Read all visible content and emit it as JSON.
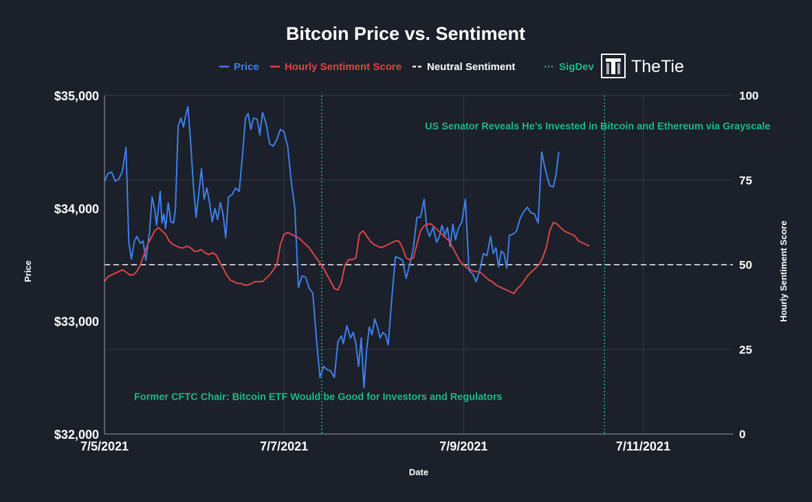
{
  "chart_data": {
    "type": "line",
    "title": "Bitcoin Price vs. Sentiment",
    "xlabel": "Date",
    "ylabel": "Price",
    "y2label": "Hourly Sentiment Score",
    "x_range": [
      0,
      7
    ],
    "x_ticks": [
      {
        "x": 0,
        "label": "7/5/2021"
      },
      {
        "x": 2,
        "label": "7/7/2021"
      },
      {
        "x": 4,
        "label": "7/9/2021"
      },
      {
        "x": 6,
        "label": "7/11/2021"
      }
    ],
    "ylim": [
      32000,
      35000
    ],
    "y_ticks": [
      {
        "v": 32000,
        "label": "$32,000"
      },
      {
        "v": 33000,
        "label": "$33,000"
      },
      {
        "v": 34000,
        "label": "$34,000"
      },
      {
        "v": 35000,
        "label": "$35,000"
      }
    ],
    "y2lim": [
      0,
      100
    ],
    "y2_ticks": [
      {
        "v": 0,
        "label": "0"
      },
      {
        "v": 25,
        "label": "25"
      },
      {
        "v": 50,
        "label": "50"
      },
      {
        "v": 75,
        "label": "75"
      },
      {
        "v": 100,
        "label": "100"
      }
    ],
    "legend": [
      {
        "name": "Price",
        "color": "#3f80ea",
        "style": "solid"
      },
      {
        "name": "Hourly Sentiment Score",
        "color": "#e04545",
        "style": "solid"
      },
      {
        "name": "Neutral Sentiment",
        "color": "#ffffff",
        "style": "dashed"
      },
      {
        "name": "SigDev",
        "color": "#1fb886",
        "style": "dotted"
      }
    ],
    "neutral_value": 50,
    "sigdevs": [
      {
        "x": 2.42,
        "text": "Former CFTC Chair: Bitcoin ETF Would be Good for Investors and Regulators",
        "label_x": 0.33,
        "label_y2": 10
      },
      {
        "x": 5.57,
        "text": "US Senator Reveals He’s Invested in Bitcoin and Ethereum via Grayscale",
        "label_x": 3.57,
        "label_y2": 90
      }
    ],
    "series": [
      {
        "name": "Price",
        "color": "#3f80ea",
        "axis": "left",
        "points": [
          [
            0.0,
            34240
          ],
          [
            0.04,
            34310
          ],
          [
            0.08,
            34320
          ],
          [
            0.12,
            34240
          ],
          [
            0.16,
            34260
          ],
          [
            0.2,
            34330
          ],
          [
            0.24,
            34540
          ],
          [
            0.27,
            33700
          ],
          [
            0.3,
            33550
          ],
          [
            0.33,
            33700
          ],
          [
            0.36,
            33750
          ],
          [
            0.4,
            33690
          ],
          [
            0.43,
            33710
          ],
          [
            0.46,
            33540
          ],
          [
            0.5,
            33780
          ],
          [
            0.53,
            34100
          ],
          [
            0.56,
            33990
          ],
          [
            0.58,
            33850
          ],
          [
            0.62,
            34150
          ],
          [
            0.64,
            33870
          ],
          [
            0.66,
            33950
          ],
          [
            0.68,
            33820
          ],
          [
            0.71,
            34050
          ],
          [
            0.74,
            33880
          ],
          [
            0.77,
            33870
          ],
          [
            0.79,
            34000
          ],
          [
            0.82,
            34730
          ],
          [
            0.85,
            34800
          ],
          [
            0.88,
            34720
          ],
          [
            0.9,
            34810
          ],
          [
            0.93,
            34900
          ],
          [
            0.96,
            34580
          ],
          [
            0.99,
            34200
          ],
          [
            1.02,
            33920
          ],
          [
            1.05,
            34130
          ],
          [
            1.08,
            34350
          ],
          [
            1.11,
            34080
          ],
          [
            1.14,
            34180
          ],
          [
            1.17,
            34050
          ],
          [
            1.2,
            33880
          ],
          [
            1.23,
            34000
          ],
          [
            1.26,
            33900
          ],
          [
            1.29,
            34050
          ],
          [
            1.32,
            33950
          ],
          [
            1.35,
            33740
          ],
          [
            1.38,
            34100
          ],
          [
            1.42,
            34120
          ],
          [
            1.46,
            34180
          ],
          [
            1.5,
            34150
          ],
          [
            1.54,
            34500
          ],
          [
            1.57,
            34800
          ],
          [
            1.6,
            34840
          ],
          [
            1.63,
            34700
          ],
          [
            1.66,
            34800
          ],
          [
            1.7,
            34790
          ],
          [
            1.73,
            34650
          ],
          [
            1.76,
            34850
          ],
          [
            1.8,
            34750
          ],
          [
            1.84,
            34570
          ],
          [
            1.88,
            34550
          ],
          [
            1.92,
            34610
          ],
          [
            1.96,
            34700
          ],
          [
            2.0,
            34680
          ],
          [
            2.04,
            34550
          ],
          [
            2.08,
            34240
          ],
          [
            2.12,
            34000
          ],
          [
            2.16,
            33300
          ],
          [
            2.2,
            33400
          ],
          [
            2.24,
            33390
          ],
          [
            2.28,
            33290
          ],
          [
            2.32,
            33250
          ],
          [
            2.36,
            32850
          ],
          [
            2.4,
            32500
          ],
          [
            2.44,
            32600
          ],
          [
            2.48,
            32570
          ],
          [
            2.52,
            32560
          ],
          [
            2.56,
            32500
          ],
          [
            2.6,
            32820
          ],
          [
            2.64,
            32870
          ],
          [
            2.66,
            32800
          ],
          [
            2.7,
            32960
          ],
          [
            2.74,
            32850
          ],
          [
            2.77,
            32900
          ],
          [
            2.8,
            32800
          ],
          [
            2.83,
            32600
          ],
          [
            2.86,
            32850
          ],
          [
            2.89,
            32410
          ],
          [
            2.92,
            32750
          ],
          [
            2.95,
            32950
          ],
          [
            2.98,
            32880
          ],
          [
            3.01,
            33020
          ],
          [
            3.04,
            32950
          ],
          [
            3.07,
            32850
          ],
          [
            3.1,
            32900
          ],
          [
            3.13,
            32880
          ],
          [
            3.16,
            32790
          ],
          [
            3.2,
            33200
          ],
          [
            3.24,
            33570
          ],
          [
            3.28,
            33560
          ],
          [
            3.32,
            33540
          ],
          [
            3.36,
            33380
          ],
          [
            3.4,
            33500
          ],
          [
            3.44,
            33650
          ],
          [
            3.48,
            33920
          ],
          [
            3.52,
            33920
          ],
          [
            3.56,
            34080
          ],
          [
            3.59,
            33820
          ],
          [
            3.62,
            33750
          ],
          [
            3.66,
            33830
          ],
          [
            3.7,
            33700
          ],
          [
            3.73,
            33750
          ],
          [
            3.76,
            33850
          ],
          [
            3.79,
            33760
          ],
          [
            3.82,
            33830
          ],
          [
            3.85,
            33660
          ],
          [
            3.88,
            33860
          ],
          [
            3.91,
            33720
          ],
          [
            3.94,
            33820
          ],
          [
            3.98,
            33880
          ],
          [
            4.02,
            34080
          ],
          [
            4.06,
            33450
          ],
          [
            4.1,
            33420
          ],
          [
            4.14,
            33350
          ],
          [
            4.18,
            33450
          ],
          [
            4.22,
            33600
          ],
          [
            4.26,
            33580
          ],
          [
            4.3,
            33750
          ],
          [
            4.33,
            33600
          ],
          [
            4.36,
            33650
          ],
          [
            4.39,
            33480
          ],
          [
            4.42,
            33620
          ],
          [
            4.45,
            33600
          ],
          [
            4.48,
            33470
          ],
          [
            4.51,
            33760
          ],
          [
            4.55,
            33770
          ],
          [
            4.59,
            33800
          ],
          [
            4.63,
            33910
          ],
          [
            4.67,
            33970
          ],
          [
            4.71,
            34010
          ],
          [
            4.75,
            33960
          ],
          [
            4.79,
            33950
          ],
          [
            4.83,
            33870
          ],
          [
            4.87,
            34500
          ],
          [
            4.9,
            34380
          ],
          [
            4.93,
            34280
          ],
          [
            4.96,
            34200
          ],
          [
            5.0,
            34190
          ],
          [
            5.03,
            34300
          ],
          [
            5.06,
            34500
          ]
        ]
      },
      {
        "name": "Hourly Sentiment Score",
        "color": "#e04545",
        "axis": "right",
        "points": [
          [
            0.0,
            45
          ],
          [
            0.04,
            46.5
          ],
          [
            0.08,
            47
          ],
          [
            0.12,
            47.5
          ],
          [
            0.16,
            48
          ],
          [
            0.2,
            48.5
          ],
          [
            0.24,
            47.8
          ],
          [
            0.28,
            47
          ],
          [
            0.32,
            47
          ],
          [
            0.36,
            48
          ],
          [
            0.4,
            50
          ],
          [
            0.44,
            53
          ],
          [
            0.48,
            56
          ],
          [
            0.52,
            58
          ],
          [
            0.56,
            60
          ],
          [
            0.6,
            61
          ],
          [
            0.64,
            60
          ],
          [
            0.68,
            59
          ],
          [
            0.72,
            57
          ],
          [
            0.76,
            56
          ],
          [
            0.8,
            55.5
          ],
          [
            0.84,
            55
          ],
          [
            0.88,
            55
          ],
          [
            0.92,
            55.5
          ],
          [
            0.96,
            55
          ],
          [
            1.0,
            54
          ],
          [
            1.04,
            54
          ],
          [
            1.08,
            54.5
          ],
          [
            1.12,
            53.5
          ],
          [
            1.16,
            53
          ],
          [
            1.2,
            53.5
          ],
          [
            1.24,
            53
          ],
          [
            1.28,
            51
          ],
          [
            1.32,
            49
          ],
          [
            1.36,
            47
          ],
          [
            1.4,
            45.5
          ],
          [
            1.44,
            45
          ],
          [
            1.48,
            44.5
          ],
          [
            1.52,
            44.5
          ],
          [
            1.56,
            44
          ],
          [
            1.6,
            44
          ],
          [
            1.64,
            44.5
          ],
          [
            1.68,
            45
          ],
          [
            1.72,
            45
          ],
          [
            1.76,
            45
          ],
          [
            1.8,
            46
          ],
          [
            1.84,
            47
          ],
          [
            1.88,
            48.5
          ],
          [
            1.92,
            50
          ],
          [
            1.96,
            56
          ],
          [
            2.0,
            59
          ],
          [
            2.04,
            59.5
          ],
          [
            2.08,
            59
          ],
          [
            2.12,
            58.5
          ],
          [
            2.16,
            58
          ],
          [
            2.2,
            57
          ],
          [
            2.24,
            56
          ],
          [
            2.28,
            55
          ],
          [
            2.32,
            53.5
          ],
          [
            2.36,
            52
          ],
          [
            2.4,
            50.5
          ],
          [
            2.44,
            49
          ],
          [
            2.48,
            47
          ],
          [
            2.52,
            45
          ],
          [
            2.56,
            43
          ],
          [
            2.6,
            42.5
          ],
          [
            2.64,
            45
          ],
          [
            2.68,
            50
          ],
          [
            2.72,
            51.5
          ],
          [
            2.76,
            51.5
          ],
          [
            2.8,
            52
          ],
          [
            2.84,
            59
          ],
          [
            2.88,
            60
          ],
          [
            2.92,
            58.5
          ],
          [
            2.96,
            57
          ],
          [
            3.0,
            56
          ],
          [
            3.04,
            55.5
          ],
          [
            3.08,
            55
          ],
          [
            3.12,
            55.5
          ],
          [
            3.16,
            56
          ],
          [
            3.2,
            56.5
          ],
          [
            3.24,
            57
          ],
          [
            3.28,
            57
          ],
          [
            3.32,
            55
          ],
          [
            3.36,
            52
          ],
          [
            3.4,
            51.5
          ],
          [
            3.44,
            52
          ],
          [
            3.48,
            56
          ],
          [
            3.52,
            60
          ],
          [
            3.56,
            61.5
          ],
          [
            3.6,
            62
          ],
          [
            3.64,
            62
          ],
          [
            3.68,
            61
          ],
          [
            3.72,
            60
          ],
          [
            3.76,
            59
          ],
          [
            3.8,
            58
          ],
          [
            3.84,
            57
          ],
          [
            3.88,
            55
          ],
          [
            3.92,
            53
          ],
          [
            3.96,
            51
          ],
          [
            4.0,
            50
          ],
          [
            4.04,
            49
          ],
          [
            4.08,
            48.5
          ],
          [
            4.12,
            48
          ],
          [
            4.16,
            48
          ],
          [
            4.2,
            47.5
          ],
          [
            4.24,
            46.5
          ],
          [
            4.28,
            45.5
          ],
          [
            4.32,
            45
          ],
          [
            4.36,
            44
          ],
          [
            4.4,
            43.5
          ],
          [
            4.44,
            43
          ],
          [
            4.48,
            42.5
          ],
          [
            4.52,
            42
          ],
          [
            4.56,
            41.5
          ],
          [
            4.6,
            43
          ],
          [
            4.64,
            44
          ],
          [
            4.68,
            45.5
          ],
          [
            4.72,
            47
          ],
          [
            4.76,
            48
          ],
          [
            4.8,
            49
          ],
          [
            4.84,
            50
          ],
          [
            4.88,
            52
          ],
          [
            4.92,
            55
          ],
          [
            4.96,
            60
          ],
          [
            5.0,
            62.5
          ],
          [
            5.04,
            62
          ],
          [
            5.08,
            61
          ],
          [
            5.12,
            60
          ],
          [
            5.16,
            59.5
          ],
          [
            5.2,
            59
          ],
          [
            5.24,
            58.5
          ],
          [
            5.28,
            57
          ],
          [
            5.32,
            56.5
          ],
          [
            5.36,
            56
          ],
          [
            5.4,
            55.5
          ]
        ]
      }
    ]
  },
  "brand": {
    "name": "TheTie"
  }
}
